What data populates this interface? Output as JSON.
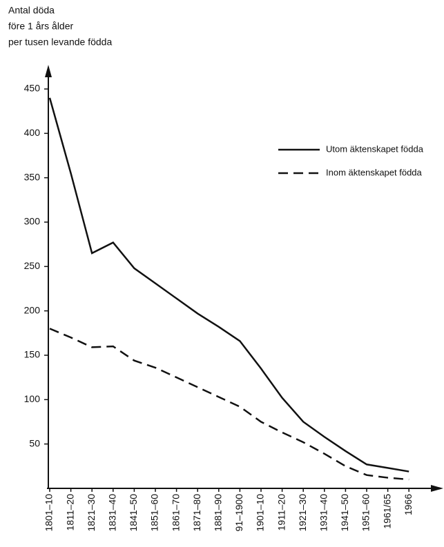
{
  "chart_data": {
    "type": "line",
    "title": [
      "Antal döda",
      "före 1 års ålder",
      "per tusen levande födda"
    ],
    "categories": [
      "1801–10",
      "1811–20",
      "1821–30",
      "1831–40",
      "1841–50",
      "1851–60",
      "1861–70",
      "1871–80",
      "1881–90",
      "91–1900",
      "1901–10",
      "1911–20",
      "1921–30",
      "1931–40",
      "1941–50",
      "1951–60",
      "1961/65",
      "1966"
    ],
    "series": [
      {
        "name": "Utom äktenskapet födda",
        "color": "#111111",
        "dash": false,
        "values": [
          440,
          355,
          265,
          277,
          248,
          231,
          214,
          197,
          182,
          166,
          135,
          102,
          75,
          58,
          42,
          27,
          23,
          19
        ]
      },
      {
        "name": "Inom äktenskapet födda",
        "color": "#111111",
        "dash": true,
        "values": [
          180,
          170,
          159,
          160,
          144,
          136,
          125,
          114,
          103,
          92,
          75,
          63,
          52,
          39,
          25,
          15,
          12,
          10
        ]
      }
    ],
    "ylim": [
      0,
      450
    ],
    "yticks": [
      50,
      100,
      150,
      200,
      250,
      300,
      350,
      400,
      450
    ],
    "grid": false
  }
}
